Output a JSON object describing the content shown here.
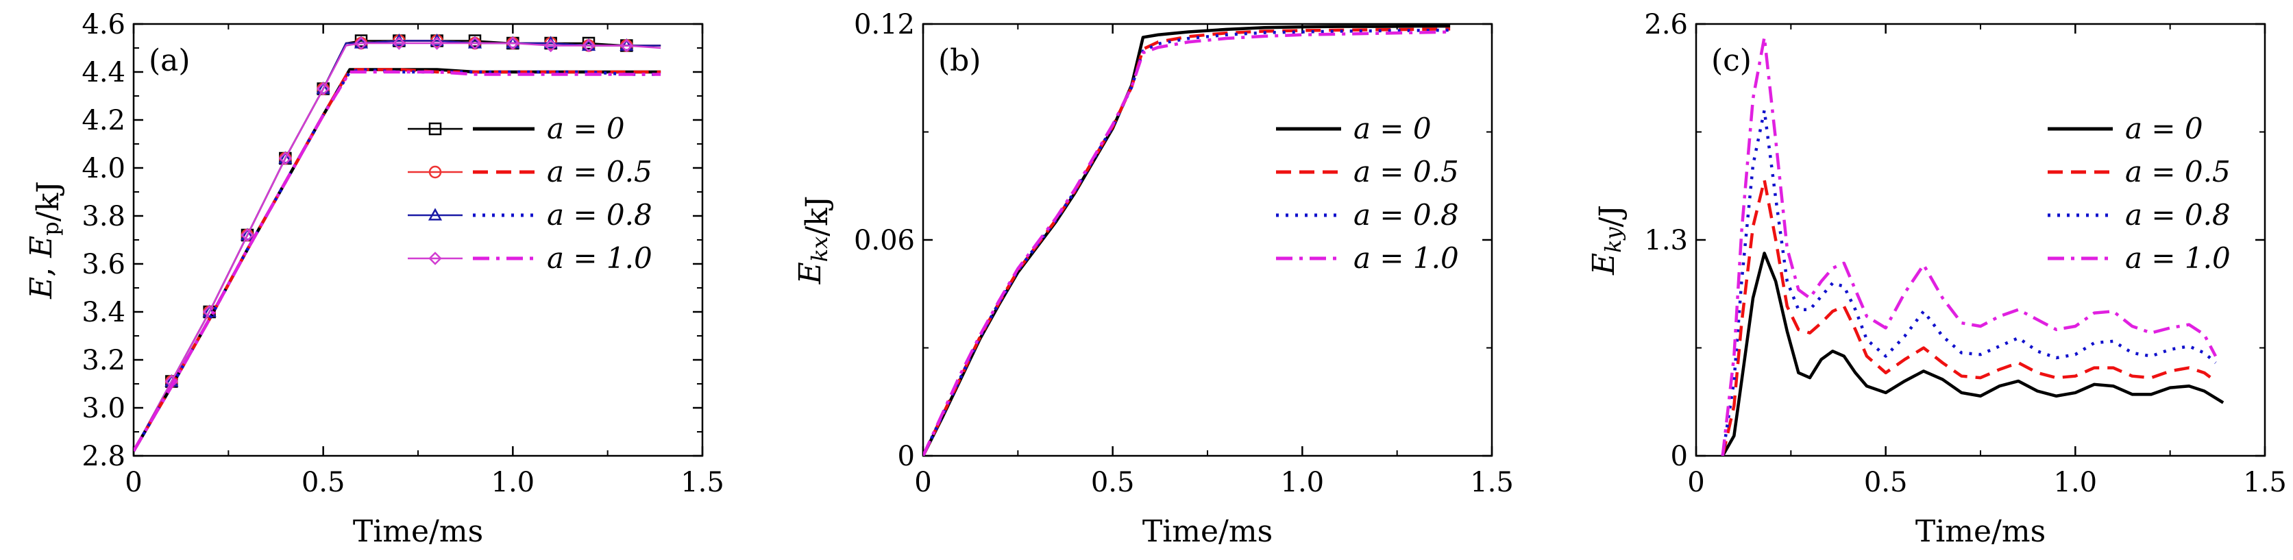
{
  "figure": {
    "panels": [
      "(a)",
      "(b)",
      "(c)"
    ]
  },
  "chart_data": [
    {
      "type": "line",
      "panel_label": "(a)",
      "xlabel": "Time/ms",
      "ylabel": "E, E_p/kJ",
      "xlim": [
        0,
        1.5
      ],
      "ylim": [
        2.8,
        4.6
      ],
      "xticks": [
        0,
        0.5,
        1.0,
        1.5
      ],
      "xtick_labels": [
        "0",
        "0.5",
        "1.0",
        "1.5"
      ],
      "yticks": [
        2.8,
        3.0,
        3.2,
        3.4,
        3.6,
        3.8,
        4.0,
        4.2,
        4.4,
        4.6
      ],
      "ytick_labels": [
        "2.8",
        "3.0",
        "3.2",
        "3.4",
        "3.6",
        "3.8",
        "4.0",
        "4.2",
        "4.4",
        "4.6"
      ],
      "legend_position": "right",
      "legend_columns": [
        "E",
        "E_p"
      ],
      "series": [
        {
          "name": "a = 0",
          "group": "E",
          "color": "#000000",
          "dash": "solid",
          "marker": "square",
          "x": [
            0,
            0.1,
            0.2,
            0.3,
            0.4,
            0.5,
            0.56,
            0.6,
            0.7,
            0.8,
            0.9,
            1.0,
            1.1,
            1.2,
            1.3,
            1.39
          ],
          "y": [
            2.82,
            3.11,
            3.4,
            3.72,
            4.04,
            4.33,
            4.52,
            4.53,
            4.53,
            4.53,
            4.53,
            4.52,
            4.52,
            4.52,
            4.51,
            4.51
          ]
        },
        {
          "name": "a = 0.5",
          "group": "E",
          "color": "#ee3333",
          "dash": "solid",
          "marker": "circle",
          "x": [
            0,
            0.1,
            0.2,
            0.3,
            0.4,
            0.5,
            0.56,
            0.6,
            0.7,
            0.8,
            0.9,
            1.0,
            1.1,
            1.2,
            1.3,
            1.39
          ],
          "y": [
            2.82,
            3.11,
            3.4,
            3.72,
            4.04,
            4.33,
            4.52,
            4.52,
            4.53,
            4.53,
            4.52,
            4.52,
            4.52,
            4.51,
            4.51,
            4.51
          ]
        },
        {
          "name": "a = 0.8",
          "group": "E",
          "color": "#1a1aa6",
          "dash": "solid",
          "marker": "triangle",
          "x": [
            0,
            0.1,
            0.2,
            0.3,
            0.4,
            0.5,
            0.56,
            0.6,
            0.7,
            0.8,
            0.9,
            1.0,
            1.1,
            1.2,
            1.3,
            1.39
          ],
          "y": [
            2.82,
            3.11,
            3.4,
            3.72,
            4.04,
            4.33,
            4.52,
            4.52,
            4.53,
            4.53,
            4.52,
            4.52,
            4.52,
            4.51,
            4.51,
            4.51
          ]
        },
        {
          "name": "a = 1.0",
          "group": "E",
          "color": "#d23ed2",
          "dash": "solid",
          "marker": "diamond",
          "x": [
            0,
            0.1,
            0.2,
            0.3,
            0.4,
            0.5,
            0.56,
            0.6,
            0.7,
            0.8,
            0.9,
            1.0,
            1.1,
            1.2,
            1.3,
            1.39
          ],
          "y": [
            2.82,
            3.11,
            3.4,
            3.72,
            4.04,
            4.33,
            4.51,
            4.52,
            4.52,
            4.52,
            4.52,
            4.52,
            4.51,
            4.51,
            4.51,
            4.5
          ]
        },
        {
          "name": "a = 0",
          "group": "E_p",
          "color": "#000000",
          "dash": "solid",
          "x": [
            0,
            0.1,
            0.2,
            0.3,
            0.4,
            0.5,
            0.57,
            0.6,
            0.7,
            0.8,
            0.9,
            1.0,
            1.1,
            1.2,
            1.3,
            1.39
          ],
          "y": [
            2.82,
            3.09,
            3.37,
            3.66,
            3.94,
            4.22,
            4.41,
            4.41,
            4.41,
            4.41,
            4.4,
            4.4,
            4.4,
            4.4,
            4.4,
            4.4
          ]
        },
        {
          "name": "a = 0.5",
          "group": "E_p",
          "color": "#ee1111",
          "dash": "dashed",
          "x": [
            0,
            0.1,
            0.2,
            0.3,
            0.4,
            0.5,
            0.57,
            0.6,
            0.7,
            0.8,
            0.9,
            1.0,
            1.1,
            1.2,
            1.3,
            1.39
          ],
          "y": [
            2.82,
            3.09,
            3.37,
            3.66,
            3.94,
            4.22,
            4.41,
            4.41,
            4.41,
            4.4,
            4.4,
            4.4,
            4.4,
            4.4,
            4.4,
            4.4
          ]
        },
        {
          "name": "a = 0.8",
          "group": "E_p",
          "color": "#1111cc",
          "dash": "dotted",
          "x": [
            0,
            0.1,
            0.2,
            0.3,
            0.4,
            0.5,
            0.57,
            0.6,
            0.7,
            0.8,
            0.9,
            1.0,
            1.1,
            1.2,
            1.3,
            1.39
          ],
          "y": [
            2.82,
            3.09,
            3.37,
            3.66,
            3.94,
            4.22,
            4.4,
            4.41,
            4.4,
            4.4,
            4.4,
            4.4,
            4.4,
            4.4,
            4.39,
            4.39
          ]
        },
        {
          "name": "a = 1.0",
          "group": "E_p",
          "color": "#e020e0",
          "dash": "dashdot",
          "x": [
            0,
            0.1,
            0.2,
            0.3,
            0.4,
            0.5,
            0.57,
            0.6,
            0.7,
            0.8,
            0.9,
            1.0,
            1.1,
            1.2,
            1.3,
            1.39
          ],
          "y": [
            2.82,
            3.09,
            3.37,
            3.66,
            3.94,
            4.22,
            4.4,
            4.4,
            4.4,
            4.4,
            4.39,
            4.39,
            4.39,
            4.39,
            4.39,
            4.39
          ]
        }
      ]
    },
    {
      "type": "line",
      "panel_label": "(b)",
      "xlabel": "Time/ms",
      "ylabel": "E_kx/kJ",
      "xlim": [
        0,
        1.5
      ],
      "ylim": [
        0,
        0.12
      ],
      "xticks": [
        0,
        0.5,
        1.0,
        1.5
      ],
      "xtick_labels": [
        "0",
        "0.5",
        "1.0",
        "1.5"
      ],
      "yticks": [
        0,
        0.06,
        0.12
      ],
      "ytick_labels": [
        "0",
        "0.06",
        "0.12"
      ],
      "legend_position": "right",
      "series": [
        {
          "name": "a = 0",
          "color": "#000000",
          "dash": "solid",
          "x": [
            0,
            0.05,
            0.1,
            0.15,
            0.2,
            0.25,
            0.3,
            0.35,
            0.4,
            0.45,
            0.5,
            0.55,
            0.58,
            0.62,
            0.7,
            0.8,
            0.9,
            1.0,
            1.1,
            1.2,
            1.3,
            1.39
          ],
          "y": [
            0,
            0.0105,
            0.0215,
            0.0325,
            0.042,
            0.051,
            0.058,
            0.065,
            0.073,
            0.082,
            0.091,
            0.103,
            0.1163,
            0.117,
            0.1178,
            0.1185,
            0.119,
            0.1192,
            0.1193,
            0.1193,
            0.1194,
            0.1194
          ]
        },
        {
          "name": "a = 0.5",
          "color": "#ee1111",
          "dash": "dashed",
          "x": [
            0,
            0.05,
            0.1,
            0.15,
            0.2,
            0.25,
            0.3,
            0.35,
            0.4,
            0.45,
            0.5,
            0.55,
            0.58,
            0.62,
            0.7,
            0.8,
            0.9,
            1.0,
            1.1,
            1.2,
            1.3,
            1.39
          ],
          "y": [
            0,
            0.011,
            0.022,
            0.033,
            0.0425,
            0.0515,
            0.0585,
            0.0655,
            0.0735,
            0.0825,
            0.0915,
            0.1025,
            0.113,
            0.115,
            0.1165,
            0.1175,
            0.118,
            0.1182,
            0.1183,
            0.1184,
            0.1185,
            0.1186
          ]
        },
        {
          "name": "a = 0.8",
          "color": "#1111cc",
          "dash": "dotted",
          "x": [
            0,
            0.05,
            0.1,
            0.15,
            0.2,
            0.25,
            0.3,
            0.35,
            0.4,
            0.45,
            0.5,
            0.55,
            0.58,
            0.62,
            0.7,
            0.8,
            0.9,
            1.0,
            1.1,
            1.2,
            1.3,
            1.39
          ],
          "y": [
            0,
            0.011,
            0.022,
            0.033,
            0.0425,
            0.0515,
            0.0585,
            0.0655,
            0.0735,
            0.0825,
            0.0915,
            0.1025,
            0.1125,
            0.1145,
            0.116,
            0.117,
            0.1176,
            0.1178,
            0.118,
            0.1181,
            0.1182,
            0.1183
          ]
        },
        {
          "name": "a = 1.0",
          "color": "#e020e0",
          "dash": "dashdot",
          "x": [
            0,
            0.05,
            0.1,
            0.15,
            0.2,
            0.25,
            0.3,
            0.35,
            0.4,
            0.45,
            0.5,
            0.55,
            0.58,
            0.62,
            0.7,
            0.8,
            0.9,
            1.0,
            1.1,
            1.2,
            1.3,
            1.39
          ],
          "y": [
            0,
            0.0115,
            0.023,
            0.0335,
            0.043,
            0.052,
            0.059,
            0.066,
            0.074,
            0.083,
            0.092,
            0.1025,
            0.112,
            0.1135,
            0.115,
            0.116,
            0.1166,
            0.117,
            0.1172,
            0.1174,
            0.1176,
            0.1178
          ]
        }
      ]
    },
    {
      "type": "line",
      "panel_label": "(c)",
      "xlabel": "Time/ms",
      "ylabel": "E_ky/J",
      "xlim": [
        0,
        1.5
      ],
      "ylim": [
        0,
        2.6
      ],
      "xticks": [
        0,
        0.5,
        1.0,
        1.5
      ],
      "xtick_labels": [
        "0",
        "0.5",
        "1.0",
        "1.5"
      ],
      "yticks": [
        0,
        1.3,
        2.6
      ],
      "ytick_labels": [
        "0",
        "1.3",
        "2.6"
      ],
      "legend_position": "right",
      "series": [
        {
          "name": "a = 0",
          "color": "#000000",
          "dash": "solid",
          "x": [
            0.07,
            0.1,
            0.12,
            0.15,
            0.18,
            0.21,
            0.24,
            0.27,
            0.3,
            0.33,
            0.36,
            0.39,
            0.42,
            0.45,
            0.5,
            0.55,
            0.6,
            0.65,
            0.7,
            0.75,
            0.8,
            0.85,
            0.9,
            0.95,
            1.0,
            1.05,
            1.1,
            1.15,
            1.2,
            1.25,
            1.3,
            1.34,
            1.39
          ],
          "y": [
            0,
            0.12,
            0.45,
            0.95,
            1.22,
            1.05,
            0.75,
            0.5,
            0.47,
            0.58,
            0.63,
            0.6,
            0.5,
            0.42,
            0.38,
            0.45,
            0.51,
            0.46,
            0.38,
            0.36,
            0.42,
            0.45,
            0.39,
            0.36,
            0.38,
            0.43,
            0.42,
            0.37,
            0.37,
            0.41,
            0.42,
            0.39,
            0.32
          ]
        },
        {
          "name": "a = 0.5",
          "color": "#ee1111",
          "dash": "dashed",
          "x": [
            0.07,
            0.1,
            0.12,
            0.15,
            0.18,
            0.21,
            0.24,
            0.27,
            0.3,
            0.33,
            0.36,
            0.39,
            0.42,
            0.45,
            0.5,
            0.55,
            0.6,
            0.65,
            0.7,
            0.75,
            0.8,
            0.85,
            0.9,
            0.95,
            1.0,
            1.05,
            1.1,
            1.15,
            1.2,
            1.25,
            1.3,
            1.34,
            1.37
          ],
          "y": [
            0,
            0.3,
            0.8,
            1.38,
            1.66,
            1.3,
            0.9,
            0.76,
            0.74,
            0.8,
            0.87,
            0.9,
            0.76,
            0.6,
            0.5,
            0.58,
            0.65,
            0.56,
            0.48,
            0.47,
            0.52,
            0.56,
            0.5,
            0.47,
            0.48,
            0.53,
            0.53,
            0.48,
            0.47,
            0.51,
            0.53,
            0.5,
            0.45
          ]
        },
        {
          "name": "a = 0.8",
          "color": "#1111cc",
          "dash": "dotted",
          "x": [
            0.07,
            0.1,
            0.12,
            0.15,
            0.18,
            0.21,
            0.24,
            0.27,
            0.3,
            0.33,
            0.36,
            0.39,
            0.42,
            0.45,
            0.5,
            0.55,
            0.6,
            0.65,
            0.7,
            0.75,
            0.8,
            0.85,
            0.9,
            0.95,
            1.0,
            1.05,
            1.1,
            1.15,
            1.2,
            1.25,
            1.3,
            1.34,
            1.37
          ],
          "y": [
            0,
            0.45,
            1.05,
            1.75,
            2.08,
            1.55,
            1.05,
            0.88,
            0.88,
            0.96,
            1.04,
            1.02,
            0.88,
            0.7,
            0.6,
            0.72,
            0.87,
            0.72,
            0.62,
            0.61,
            0.66,
            0.71,
            0.63,
            0.59,
            0.61,
            0.68,
            0.69,
            0.62,
            0.6,
            0.64,
            0.66,
            0.62,
            0.56
          ]
        },
        {
          "name": "a = 1.0",
          "color": "#e020e0",
          "dash": "dashdot",
          "x": [
            0.07,
            0.1,
            0.12,
            0.15,
            0.18,
            0.21,
            0.24,
            0.27,
            0.3,
            0.33,
            0.36,
            0.39,
            0.42,
            0.45,
            0.5,
            0.55,
            0.6,
            0.65,
            0.7,
            0.75,
            0.8,
            0.85,
            0.9,
            0.95,
            1.0,
            1.05,
            1.1,
            1.15,
            1.2,
            1.25,
            1.3,
            1.34,
            1.37
          ],
          "y": [
            0,
            0.6,
            1.35,
            2.15,
            2.52,
            1.9,
            1.25,
            1.0,
            0.95,
            1.05,
            1.13,
            1.16,
            1.0,
            0.84,
            0.77,
            0.98,
            1.15,
            0.95,
            0.8,
            0.78,
            0.84,
            0.88,
            0.82,
            0.76,
            0.78,
            0.86,
            0.87,
            0.78,
            0.74,
            0.77,
            0.79,
            0.73,
            0.6
          ]
        }
      ]
    }
  ]
}
